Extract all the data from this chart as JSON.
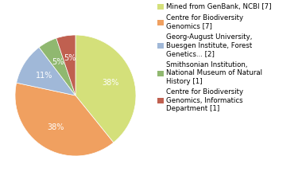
{
  "slices": [
    38,
    38,
    11,
    5,
    5
  ],
  "colors": [
    "#d4e07a",
    "#f0a060",
    "#a0b8d8",
    "#90b870",
    "#c06050"
  ],
  "labels": [
    "38%",
    "38%",
    "11%",
    "5%",
    "5%"
  ],
  "legend_labels": [
    "Mined from GenBank, NCBI [7]",
    "Centre for Biodiversity\nGenomics [7]",
    "Georg-August University,\nBuesgen Institute, Forest\nGenetics... [2]",
    "Smithsonian Institution,\nNational Museum of Natural\nHistory [1]",
    "Centre for Biodiversity\nGenomics, Informatics\nDepartment [1]"
  ],
  "legend_colors": [
    "#d4e07a",
    "#f0a060",
    "#a0b8d8",
    "#90b870",
    "#c06050"
  ],
  "text_color": "#ffffff",
  "startangle": 90,
  "label_fontsize": 7,
  "legend_fontsize": 6.2
}
